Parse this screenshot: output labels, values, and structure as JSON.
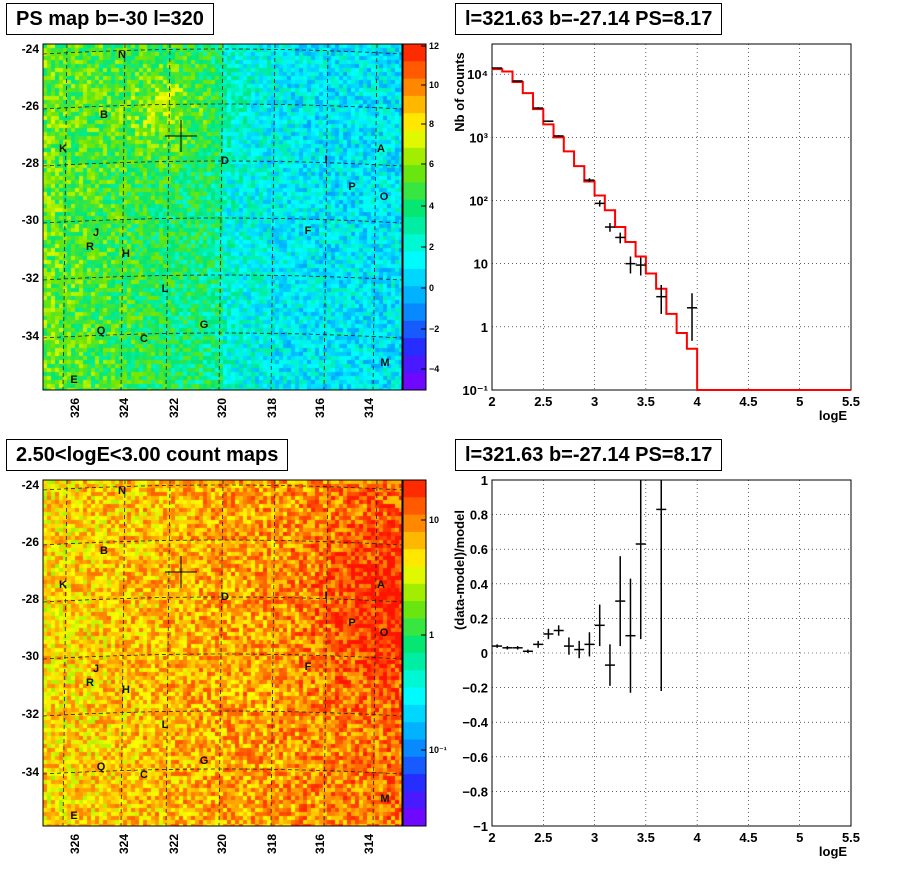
{
  "chart_data": [
    {
      "type": "heatmap",
      "title": "PS map b=-30 l=320",
      "y_ticks": [
        "-24",
        "-26",
        "-28",
        "-30",
        "-32",
        "-34"
      ],
      "x_ticks": [
        "326",
        "324",
        "322",
        "320",
        "318",
        "316",
        "314"
      ],
      "colorbar_ticks": [
        "12",
        "10",
        "8",
        "6",
        "4",
        "2",
        "0",
        "−2",
        "−4"
      ],
      "colorbar_range": [
        -5,
        12
      ],
      "regions": [
        "N",
        "B",
        "K",
        "D",
        "I",
        "A",
        "P",
        "O",
        "J",
        "R",
        "H",
        "F",
        "L",
        "G",
        "Q",
        "C",
        "M",
        "E"
      ]
    },
    {
      "type": "line",
      "title": "l=321.63 b=-27.14 PS=8.17",
      "xlabel": "logE",
      "ylabel": "Nb of counts",
      "y_scale": "log",
      "xlim": [
        2,
        5.5
      ],
      "ylim": [
        0.1,
        30000
      ],
      "x_ticks": [
        "2",
        "2.5",
        "3",
        "3.5",
        "4",
        "4.5",
        "5",
        "5.5"
      ],
      "y_ticks": [
        "10⁻¹",
        "1",
        "10",
        "10²",
        "10³",
        "10⁴"
      ],
      "grid": true,
      "model_color": "#ff0000",
      "model_step": {
        "edges": [
          2.0,
          2.1,
          2.2,
          2.3,
          2.4,
          2.5,
          2.6,
          2.7,
          2.8,
          2.9,
          3.0,
          3.1,
          3.2,
          3.3,
          3.4,
          3.5,
          3.6,
          3.7,
          3.8,
          3.9,
          4.0,
          5.5
        ],
        "values": [
          12000,
          11000,
          7500,
          5000,
          2800,
          1600,
          1000,
          600,
          350,
          200,
          120,
          70,
          38,
          22,
          13,
          7,
          4,
          1.6,
          0.8,
          0.45,
          0.1
        ]
      },
      "data_points": [
        {
          "x": 2.05,
          "y": 12500,
          "err_lo": 12400,
          "err_hi": 12600
        },
        {
          "x": 2.25,
          "y": 7800,
          "err_lo": 7700,
          "err_hi": 7900
        },
        {
          "x": 2.45,
          "y": 2900,
          "err_lo": 2800,
          "err_hi": 3000
        },
        {
          "x": 2.55,
          "y": 1800,
          "err_lo": 1750,
          "err_hi": 1850
        },
        {
          "x": 2.65,
          "y": 1050,
          "err_lo": 1020,
          "err_hi": 1080
        },
        {
          "x": 2.95,
          "y": 210,
          "err_lo": 195,
          "err_hi": 225
        },
        {
          "x": 3.05,
          "y": 90,
          "err_lo": 80,
          "err_hi": 100
        },
        {
          "x": 3.15,
          "y": 38,
          "err_lo": 32,
          "err_hi": 44
        },
        {
          "x": 3.25,
          "y": 26,
          "err_lo": 21,
          "err_hi": 31
        },
        {
          "x": 3.35,
          "y": 10,
          "err_lo": 7,
          "err_hi": 13
        },
        {
          "x": 3.45,
          "y": 9.5,
          "err_lo": 6.5,
          "err_hi": 12.5
        },
        {
          "x": 3.65,
          "y": 3,
          "err_lo": 1.6,
          "err_hi": 4.6
        },
        {
          "x": 3.95,
          "y": 2,
          "err_lo": 0.6,
          "err_hi": 3.4
        }
      ]
    },
    {
      "type": "heatmap",
      "title": "2.50<logE<3.00 count maps",
      "y_ticks": [
        "-24",
        "-26",
        "-28",
        "-30",
        "-32",
        "-34"
      ],
      "x_ticks": [
        "326",
        "324",
        "322",
        "320",
        "318",
        "316",
        "314"
      ],
      "colorbar_ticks": [
        "10",
        "1",
        "10⁻¹"
      ],
      "colorbar_scale": "log",
      "regions": [
        "N",
        "B",
        "K",
        "D",
        "I",
        "A",
        "P",
        "O",
        "J",
        "R",
        "H",
        "F",
        "L",
        "G",
        "Q",
        "C",
        "M",
        "E"
      ]
    },
    {
      "type": "scatter",
      "title": "l=321.63 b=-27.14 PS=8.17",
      "xlabel": "logE",
      "ylabel": "(data-model)/model",
      "xlim": [
        2,
        5.5
      ],
      "ylim": [
        -1,
        1
      ],
      "x_ticks": [
        "2",
        "2.5",
        "3",
        "3.5",
        "4",
        "4.5",
        "5",
        "5.5"
      ],
      "y_ticks": [
        "1",
        "0.8",
        "0.6",
        "0.4",
        "0.2",
        "0",
        "−0.2",
        "−0.4",
        "−0.6",
        "−0.8",
        "−1"
      ],
      "grid": true,
      "data_points": [
        {
          "x": 2.05,
          "y": 0.04,
          "err": 0.01
        },
        {
          "x": 2.15,
          "y": 0.03,
          "err": 0.01
        },
        {
          "x": 2.25,
          "y": 0.03,
          "err": 0.01
        },
        {
          "x": 2.35,
          "y": 0.01,
          "err": 0.01
        },
        {
          "x": 2.45,
          "y": 0.05,
          "err": 0.02
        },
        {
          "x": 2.55,
          "y": 0.11,
          "err": 0.03
        },
        {
          "x": 2.65,
          "y": 0.13,
          "err": 0.03
        },
        {
          "x": 2.75,
          "y": 0.04,
          "err": 0.05
        },
        {
          "x": 2.85,
          "y": 0.02,
          "err": 0.05
        },
        {
          "x": 2.95,
          "y": 0.05,
          "err": 0.07
        },
        {
          "x": 3.05,
          "y": 0.16,
          "err": 0.12
        },
        {
          "x": 3.15,
          "y": -0.07,
          "err": 0.12
        },
        {
          "x": 3.25,
          "y": 0.3,
          "err": 0.26
        },
        {
          "x": 3.35,
          "y": 0.1,
          "err": 0.33
        },
        {
          "x": 3.45,
          "y": 0.63,
          "err": 0.55
        },
        {
          "x": 3.65,
          "y": 0.83,
          "err": 1.05
        }
      ]
    }
  ]
}
